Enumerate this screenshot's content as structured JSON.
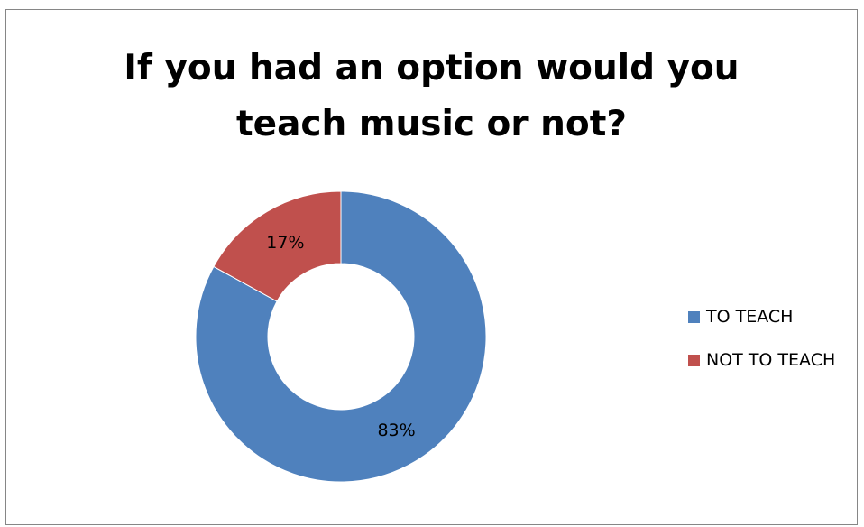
{
  "chart_data": {
    "type": "pie",
    "variant": "doughnut",
    "title": "If you had an option would  you\nteach music or not?",
    "series": [
      {
        "name": "TO TEACH",
        "value": 83,
        "label": "83%",
        "color": "#4F81BD"
      },
      {
        "name": "NOT TO TEACH",
        "value": 17,
        "label": "17%",
        "color": "#C0504D"
      }
    ],
    "legend_position": "right",
    "start_angle_deg": 0,
    "direction": "clockwise"
  }
}
